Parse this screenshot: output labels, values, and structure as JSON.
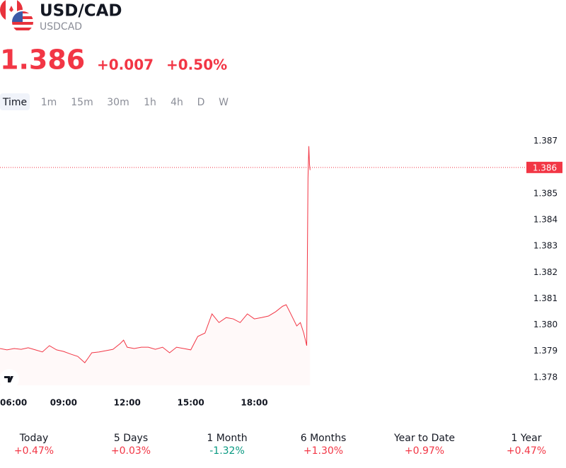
{
  "header": {
    "title": "USD/CAD",
    "subtitle": "USDCAD",
    "price": "1.386",
    "change": "+0.007",
    "change_percent": "+0.50%"
  },
  "tabs": [
    "Time",
    "1m",
    "15m",
    "30m",
    "1h",
    "4h",
    "D",
    "W"
  ],
  "chart_data": {
    "type": "line",
    "series": [
      {
        "name": "USDCAD",
        "color": "#f23645",
        "x": [
          6,
          6.33,
          6.67,
          7,
          7.33,
          7.67,
          8,
          8.33,
          8.67,
          9,
          9.33,
          9.67,
          10,
          10.17,
          10.33,
          10.67,
          11,
          11.33,
          11.67,
          11.83,
          12,
          12.33,
          12.67,
          13,
          13.33,
          13.67,
          14,
          14.33,
          14.67,
          15,
          15.33,
          15.67,
          16,
          16.33,
          16.67,
          17,
          17.33,
          17.67,
          18,
          18.33,
          18.67,
          19,
          19.33,
          19.5,
          19.67,
          20,
          20.17,
          20.33,
          20.47,
          20.53,
          20.57,
          20.6,
          20.63
        ],
        "values": [
          1.3791,
          1.37905,
          1.3791,
          1.37907,
          1.37913,
          1.37905,
          1.37897,
          1.37921,
          1.37905,
          1.37899,
          1.37889,
          1.3788,
          1.37856,
          1.37875,
          1.37894,
          1.37897,
          1.37902,
          1.37907,
          1.37929,
          1.37942,
          1.37915,
          1.3791,
          1.37915,
          1.37915,
          1.37907,
          1.37915,
          1.37894,
          1.37915,
          1.3791,
          1.37905,
          1.37956,
          1.37969,
          1.38042,
          1.38009,
          1.38028,
          1.38023,
          1.38009,
          1.38042,
          1.38023,
          1.38028,
          1.38034,
          1.3805,
          1.38071,
          1.38077,
          1.3805,
          1.37996,
          1.38009,
          1.37969,
          1.37921,
          1.3856,
          1.38681,
          1.38614,
          1.3859
        ]
      }
    ],
    "last_value": 1.386,
    "xlim": [
      6,
      30.7
    ],
    "xticks": [
      {
        "value": 6,
        "label": "06:00"
      },
      {
        "value": 9,
        "label": "09:00"
      },
      {
        "value": 12,
        "label": "12:00"
      },
      {
        "value": 15,
        "label": "15:00"
      },
      {
        "value": 18,
        "label": "18:00"
      }
    ],
    "ylim": [
      1.3777,
      1.3878
    ],
    "yticks": [
      1.387,
      1.386,
      1.385,
      1.384,
      1.383,
      1.382,
      1.381,
      {
        "value": 1.38,
        "label": "1.380"
      },
      1.379,
      1.378
    ],
    "grid": false
  },
  "performance": [
    {
      "label": "Today",
      "value": "+0.47%"
    },
    {
      "label": "5 Days",
      "value": "+0.03%"
    },
    {
      "label": "1 Month",
      "value": "-1.32%"
    },
    {
      "label": "6 Months",
      "value": "+1.30%"
    },
    {
      "label": "Year to Date",
      "value": "+0.97%"
    },
    {
      "label": "1 Year",
      "value": "+0.47%"
    }
  ]
}
